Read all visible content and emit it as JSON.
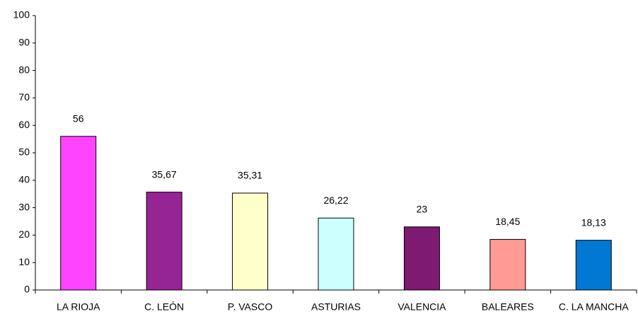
{
  "chart_data": {
    "type": "bar",
    "categories": [
      "LA RIOJA",
      "C. LEÓN",
      "P. VASCO",
      "ASTURIAS",
      "VALENCIA",
      "BALEARES",
      "C. LA MANCHA"
    ],
    "values": [
      56,
      35.67,
      35.31,
      26.22,
      23,
      18.45,
      18.13
    ],
    "value_labels": [
      "56",
      "35,67",
      "35,31",
      "26,22",
      "23",
      "18,45",
      "18,13"
    ],
    "colors": [
      "#ff44ff",
      "#962494",
      "#ffffcc",
      "#ccffff",
      "#7e1a72",
      "#ff9a94",
      "#0078d4"
    ],
    "ylim": [
      0,
      100
    ],
    "yticks": [
      0,
      10,
      20,
      30,
      40,
      50,
      60,
      70,
      80,
      90,
      100
    ],
    "grid": false
  }
}
